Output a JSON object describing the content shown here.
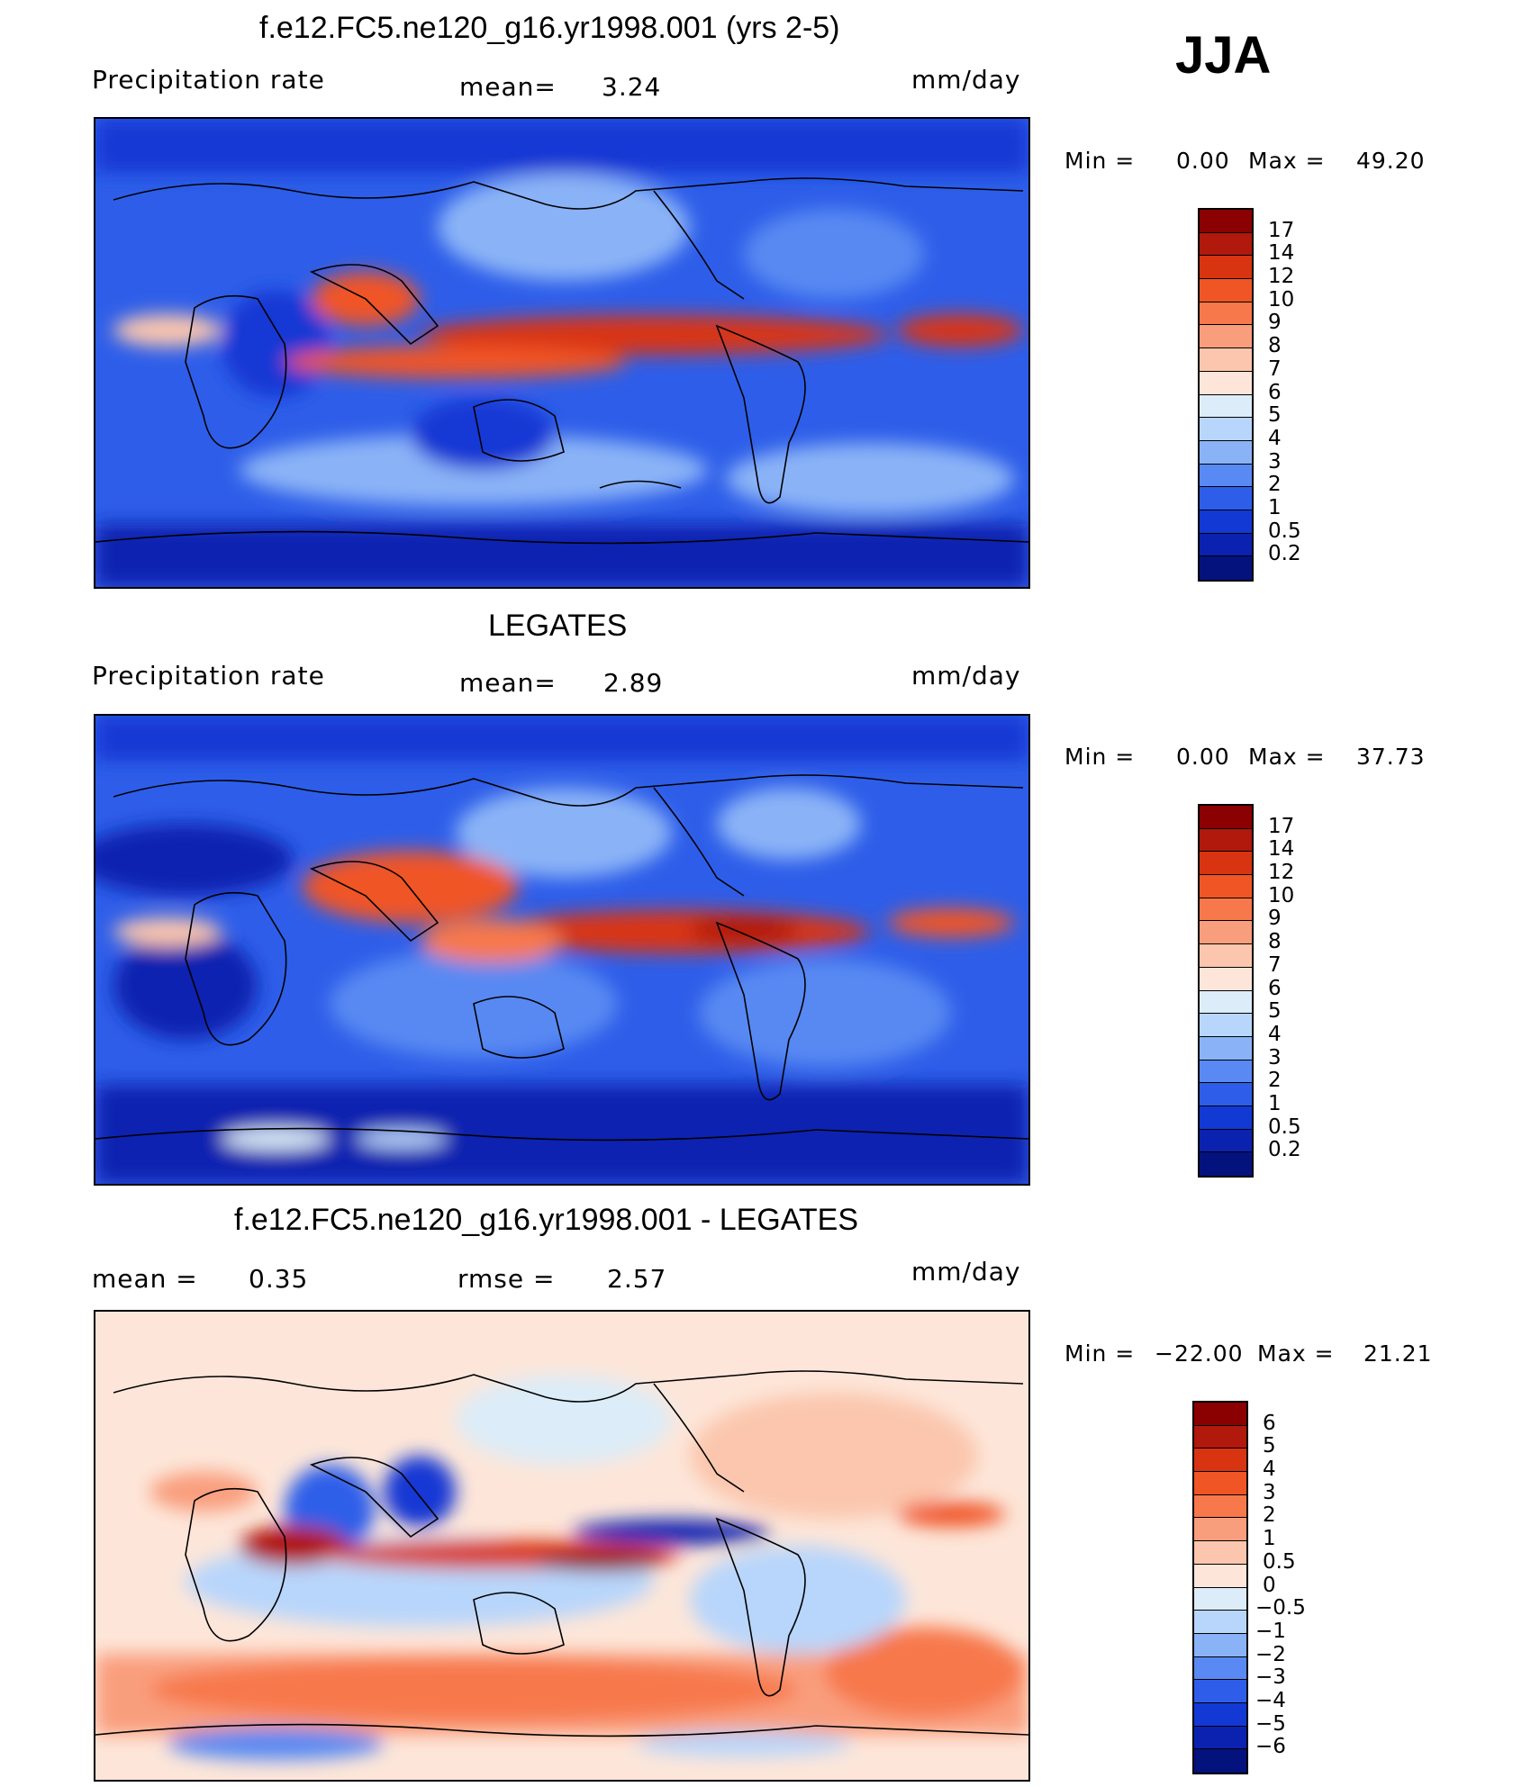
{
  "season": "JJA",
  "panels": [
    {
      "title": "f.e12.FC5.ne120_g16.yr1998.001 (yrs 2-5)",
      "left_label": "Precipitation  rate",
      "mid_label": "mean=",
      "mid_value": "3.24",
      "units": "mm/day",
      "minmax": {
        "min_label": "Min  =",
        "min_value": "0.00",
        "max_label": "Max  =",
        "max_value": "49.20"
      },
      "colorbar": {
        "labels": [
          "17",
          "14",
          "12",
          "10",
          "9",
          "8",
          "7",
          "6",
          "5",
          "4",
          "3",
          "2",
          "1",
          "0.5",
          "0.2"
        ],
        "colors": [
          "#8b0000",
          "#b0190b",
          "#d83412",
          "#f05525",
          "#f7784b",
          "#f99e7d",
          "#fbc6ad",
          "#fde6d9",
          "#dcecf8",
          "#b8d6fb",
          "#8ab3f7",
          "#5989f2",
          "#2e5ee9",
          "#1239d4",
          "#0b22b0",
          "#04127e"
        ]
      }
    },
    {
      "title": "LEGATES",
      "left_label": "Precipitation  rate",
      "mid_label": "mean=",
      "mid_value": "2.89",
      "units": "mm/day",
      "minmax": {
        "min_label": "Min  =",
        "min_value": "0.00",
        "max_label": "Max  =",
        "max_value": "37.73"
      },
      "colorbar": {
        "labels": [
          "17",
          "14",
          "12",
          "10",
          "9",
          "8",
          "7",
          "6",
          "5",
          "4",
          "3",
          "2",
          "1",
          "0.5",
          "0.2"
        ],
        "colors": [
          "#8b0000",
          "#b0190b",
          "#d83412",
          "#f05525",
          "#f7784b",
          "#f99e7d",
          "#fbc6ad",
          "#fde6d9",
          "#dcecf8",
          "#b8d6fb",
          "#8ab3f7",
          "#5989f2",
          "#2e5ee9",
          "#1239d4",
          "#0b22b0",
          "#04127e"
        ]
      }
    },
    {
      "title": "f.e12.FC5.ne120_g16.yr1998.001 - LEGATES",
      "left_label": "mean  =",
      "left_value": "0.35",
      "mid_label": "rmse  =",
      "mid_value": "2.57",
      "units": "mm/day",
      "minmax": {
        "min_label": "Min  =",
        "min_value": "−22.00",
        "max_label": "Max  =",
        "max_value": "21.21"
      },
      "colorbar": {
        "labels": [
          "6",
          "5",
          "4",
          "3",
          "2",
          "1",
          "0.5",
          "0",
          "−0.5",
          "−1",
          "−2",
          "−3",
          "−4",
          "−5",
          "−6"
        ],
        "colors": [
          "#8b0000",
          "#b0190b",
          "#d83412",
          "#f05525",
          "#f7784b",
          "#f99e7d",
          "#fbc6ad",
          "#fde6d9",
          "#dcecf8",
          "#b8d6fb",
          "#8ab3f7",
          "#5989f2",
          "#2e5ee9",
          "#1239d4",
          "#0b22b0",
          "#04127e"
        ]
      }
    }
  ]
}
